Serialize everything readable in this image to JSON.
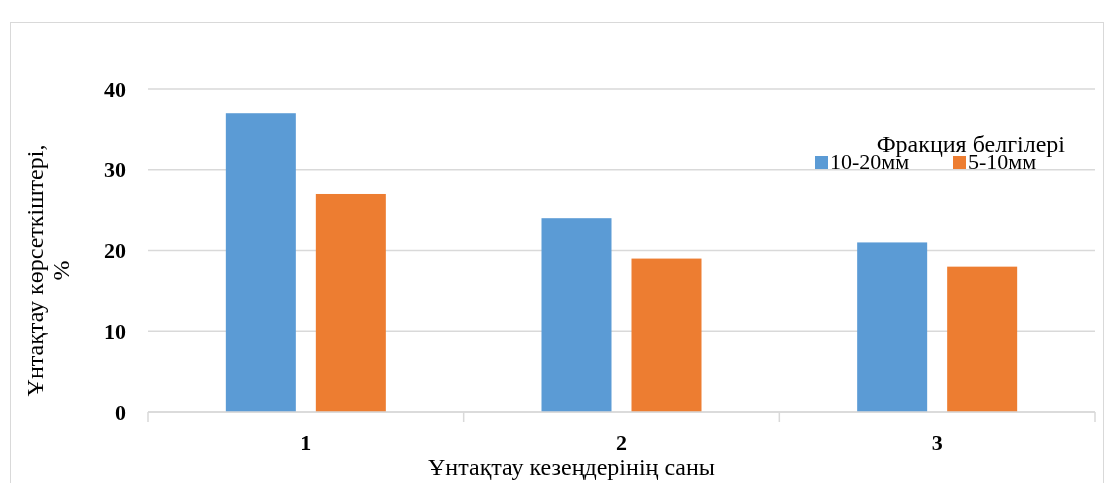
{
  "chart_data": {
    "type": "bar",
    "xlabel": "Ұнтақтау кезеңдерінің саны",
    "ylabel": "Ұнтақтау көрсеткіштері, %",
    "legend_title": "Фракция белгілері",
    "categories": [
      "1",
      "2",
      "3"
    ],
    "series": [
      {
        "name": "10-20мм",
        "color": "#5b9bd5",
        "values": [
          37,
          24,
          21
        ]
      },
      {
        "name": "5-10мм",
        "color": "#ed7d31",
        "values": [
          27,
          19,
          18
        ]
      }
    ],
    "ylim": [
      0,
      40
    ],
    "yticks": [
      0,
      10,
      20,
      30,
      40
    ],
    "grid": "y",
    "legend": "top right"
  }
}
